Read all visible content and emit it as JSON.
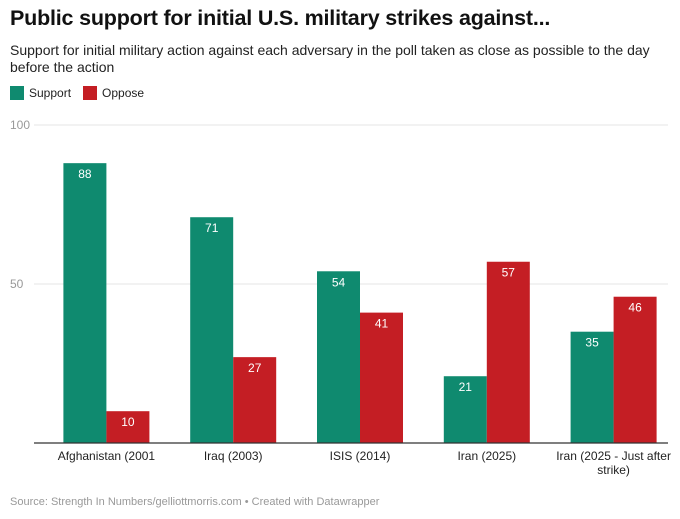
{
  "header": {
    "title": "Public support for initial U.S. military strikes against...",
    "subtitle": "Support for initial military action against each adversary in the poll taken as close as possible to the day before the action"
  },
  "footer": {
    "source": "Source: Strength In Numbers/gelliottmorris.com • Created with Datawrapper"
  },
  "colors": {
    "support": "#0f8a6f",
    "oppose": "#c41e24"
  },
  "chart_data": {
    "type": "bar",
    "title": "Public support for initial U.S. military strikes against...",
    "subtitle": "Support for initial military action against each adversary in the poll taken as close as possible to the day before the action",
    "categories": [
      [
        "Afghanistan (2001"
      ],
      [
        "Iraq (2003)"
      ],
      [
        "ISIS (2014)"
      ],
      [
        "Iran (2025)"
      ],
      [
        "Iran (2025 - Just after",
        "strike)"
      ]
    ],
    "series": [
      {
        "name": "Support",
        "values": [
          88,
          71,
          54,
          21,
          35
        ]
      },
      {
        "name": "Oppose",
        "values": [
          10,
          27,
          41,
          57,
          46
        ]
      }
    ],
    "ylim": [
      0,
      100
    ],
    "yticks": [
      50,
      100
    ],
    "grid": true,
    "legend": "top-left"
  }
}
